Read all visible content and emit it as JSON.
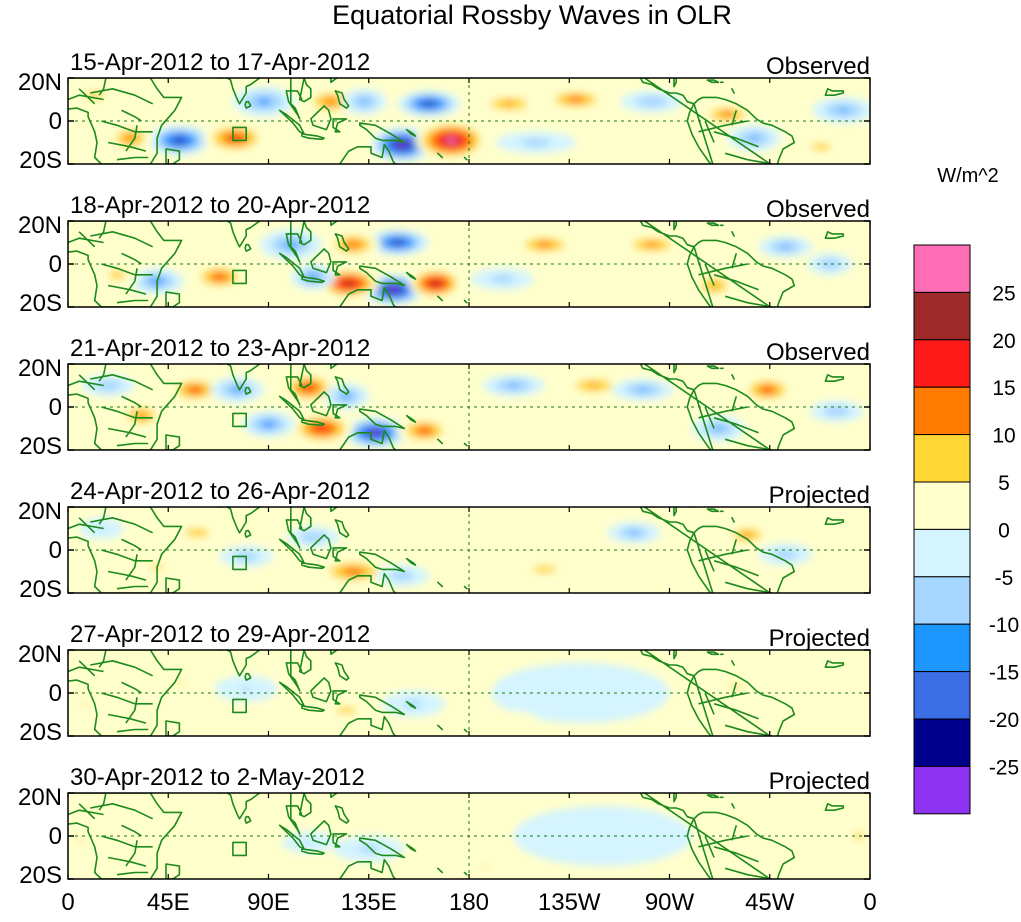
{
  "chart_data": {
    "type": "heatmap",
    "title": "Equatorial Rossby Waves in OLR",
    "units_label": "W/m^2",
    "x_tick_labels": [
      "0",
      "45E",
      "90E",
      "135E",
      "180",
      "135W",
      "90W",
      "45W",
      "0"
    ],
    "x_tick_lons": [
      0,
      45,
      90,
      135,
      180,
      225,
      270,
      315,
      360
    ],
    "y_tick_labels": [
      "20N",
      "0",
      "20S"
    ],
    "y_tick_lats": [
      20,
      0,
      -20
    ],
    "lon_range": [
      0,
      360
    ],
    "lat_range": [
      -20,
      20
    ],
    "colorbar": {
      "levels": [
        -25,
        -20,
        -15,
        -10,
        -5,
        0,
        5,
        10,
        15,
        20,
        25
      ],
      "level_labels": [
        "25",
        "20",
        "15",
        "10",
        "5",
        "0",
        "-5",
        "-10",
        "-15",
        "-20",
        "-25"
      ],
      "colors": [
        "#ff6eb4",
        "#9e2a2a",
        "#ff1a1a",
        "#ff7a00",
        "#ffd633",
        "#ffffcc",
        "#d4f4ff",
        "#a6d6ff",
        "#1e96ff",
        "#3c6ee6",
        "#00008c",
        "#8c32f0"
      ]
    },
    "panels": [
      {
        "date_label": "15-Apr-2012 to 17-Apr-2012",
        "status": "Observed",
        "blobs": [
          {
            "lon": 150,
            "lat": -11,
            "v": -28,
            "rx": 14,
            "ry": 8
          },
          {
            "lon": 172,
            "lat": -9,
            "v": 26,
            "rx": 16,
            "ry": 9
          },
          {
            "lon": 162,
            "lat": 8,
            "v": -22,
            "rx": 14,
            "ry": 6
          },
          {
            "lon": 50,
            "lat": -9,
            "v": -22,
            "rx": 14,
            "ry": 7
          },
          {
            "lon": 75,
            "lat": -8,
            "v": 18,
            "rx": 14,
            "ry": 7
          },
          {
            "lon": 28,
            "lat": -8,
            "v": 14,
            "rx": 10,
            "ry": 6
          },
          {
            "lon": 88,
            "lat": 9,
            "v": -13,
            "rx": 14,
            "ry": 7
          },
          {
            "lon": 118,
            "lat": 9,
            "v": 14,
            "rx": 12,
            "ry": 6
          },
          {
            "lon": 133,
            "lat": 9,
            "v": -12,
            "rx": 10,
            "ry": 6
          },
          {
            "lon": 198,
            "lat": 8,
            "v": 12,
            "rx": 14,
            "ry": 5
          },
          {
            "lon": 228,
            "lat": 10,
            "v": 15,
            "rx": 14,
            "ry": 5
          },
          {
            "lon": 262,
            "lat": 9,
            "v": -10,
            "rx": 14,
            "ry": 5
          },
          {
            "lon": 296,
            "lat": 3,
            "v": 14,
            "rx": 12,
            "ry": 5
          },
          {
            "lon": 308,
            "lat": -8,
            "v": -12,
            "rx": 12,
            "ry": 6
          },
          {
            "lon": 348,
            "lat": 5,
            "v": -12,
            "rx": 14,
            "ry": 6
          },
          {
            "lon": 338,
            "lat": -12,
            "v": 8,
            "rx": 12,
            "ry": 5
          },
          {
            "lon": 12,
            "lat": 12,
            "v": 8,
            "rx": 12,
            "ry": 5
          },
          {
            "lon": 210,
            "lat": -10,
            "v": -8,
            "rx": 18,
            "ry": 5
          }
        ]
      },
      {
        "date_label": "18-Apr-2012 to 20-Apr-2012",
        "status": "Observed",
        "blobs": [
          {
            "lon": 146,
            "lat": -12,
            "v": -28,
            "rx": 14,
            "ry": 7
          },
          {
            "lon": 126,
            "lat": -9,
            "v": 24,
            "rx": 14,
            "ry": 7
          },
          {
            "lon": 165,
            "lat": -9,
            "v": 24,
            "rx": 12,
            "ry": 7
          },
          {
            "lon": 148,
            "lat": 10,
            "v": -22,
            "rx": 14,
            "ry": 6
          },
          {
            "lon": 68,
            "lat": -6,
            "v": 16,
            "rx": 12,
            "ry": 6
          },
          {
            "lon": 40,
            "lat": -8,
            "v": -14,
            "rx": 12,
            "ry": 6
          },
          {
            "lon": 100,
            "lat": 9,
            "v": -13,
            "rx": 14,
            "ry": 7
          },
          {
            "lon": 110,
            "lat": -6,
            "v": -14,
            "rx": 10,
            "ry": 6
          },
          {
            "lon": 128,
            "lat": 9,
            "v": 15,
            "rx": 12,
            "ry": 6
          },
          {
            "lon": 214,
            "lat": 9,
            "v": 14,
            "rx": 14,
            "ry": 5
          },
          {
            "lon": 262,
            "lat": 9,
            "v": 13,
            "rx": 14,
            "ry": 5
          },
          {
            "lon": 290,
            "lat": -10,
            "v": 12,
            "rx": 10,
            "ry": 6
          },
          {
            "lon": 322,
            "lat": 8,
            "v": -12,
            "rx": 12,
            "ry": 5
          },
          {
            "lon": 342,
            "lat": 0,
            "v": -10,
            "rx": 10,
            "ry": 5
          },
          {
            "lon": 22,
            "lat": -5,
            "v": 8,
            "rx": 10,
            "ry": 6
          },
          {
            "lon": 195,
            "lat": -7,
            "v": -8,
            "rx": 14,
            "ry": 5
          }
        ]
      },
      {
        "date_label": "21-Apr-2012 to 23-Apr-2012",
        "status": "Observed",
        "blobs": [
          {
            "lon": 138,
            "lat": -12,
            "v": -26,
            "rx": 14,
            "ry": 7
          },
          {
            "lon": 114,
            "lat": -10,
            "v": 20,
            "rx": 14,
            "ry": 7
          },
          {
            "lon": 160,
            "lat": -11,
            "v": 16,
            "rx": 12,
            "ry": 6
          },
          {
            "lon": 108,
            "lat": 9,
            "v": 18,
            "rx": 12,
            "ry": 7
          },
          {
            "lon": 125,
            "lat": 5,
            "v": -13,
            "rx": 10,
            "ry": 6
          },
          {
            "lon": 57,
            "lat": 8,
            "v": 16,
            "rx": 12,
            "ry": 6
          },
          {
            "lon": 76,
            "lat": 8,
            "v": -13,
            "rx": 12,
            "ry": 6
          },
          {
            "lon": 90,
            "lat": -8,
            "v": -14,
            "rx": 12,
            "ry": 6
          },
          {
            "lon": 33,
            "lat": -4,
            "v": 13,
            "rx": 10,
            "ry": 6
          },
          {
            "lon": 18,
            "lat": 10,
            "v": -10,
            "rx": 12,
            "ry": 5
          },
          {
            "lon": 200,
            "lat": 10,
            "v": -12,
            "rx": 14,
            "ry": 5
          },
          {
            "lon": 236,
            "lat": 10,
            "v": 12,
            "rx": 14,
            "ry": 5
          },
          {
            "lon": 258,
            "lat": 8,
            "v": -12,
            "rx": 14,
            "ry": 5
          },
          {
            "lon": 314,
            "lat": 8,
            "v": 16,
            "rx": 12,
            "ry": 6
          },
          {
            "lon": 292,
            "lat": -10,
            "v": -12,
            "rx": 12,
            "ry": 6
          },
          {
            "lon": 345,
            "lat": -2,
            "v": -10,
            "rx": 12,
            "ry": 5
          }
        ]
      },
      {
        "date_label": "24-Apr-2012 to 26-Apr-2012",
        "status": "Projected",
        "blobs": [
          {
            "lon": 128,
            "lat": -10,
            "v": 15,
            "rx": 16,
            "ry": 6
          },
          {
            "lon": 110,
            "lat": 6,
            "v": -10,
            "rx": 12,
            "ry": 5
          },
          {
            "lon": 150,
            "lat": -12,
            "v": -9,
            "rx": 12,
            "ry": 5
          },
          {
            "lon": 58,
            "lat": 8,
            "v": 9,
            "rx": 12,
            "ry": 5
          },
          {
            "lon": 80,
            "lat": -3,
            "v": -9,
            "rx": 12,
            "ry": 5
          },
          {
            "lon": 40,
            "lat": -8,
            "v": 7,
            "rx": 10,
            "ry": 5
          },
          {
            "lon": 254,
            "lat": 8,
            "v": -11,
            "rx": 12,
            "ry": 5
          },
          {
            "lon": 305,
            "lat": 7,
            "v": 13,
            "rx": 10,
            "ry": 5
          },
          {
            "lon": 322,
            "lat": -2,
            "v": -9,
            "rx": 12,
            "ry": 5
          },
          {
            "lon": 214,
            "lat": -9,
            "v": 8,
            "rx": 14,
            "ry": 5
          },
          {
            "lon": 15,
            "lat": 10,
            "v": -6,
            "rx": 10,
            "ry": 5
          }
        ]
      },
      {
        "date_label": "27-Apr-2012 to 29-Apr-2012",
        "status": "Projected",
        "blobs": [
          {
            "lon": 125,
            "lat": -8,
            "v": 7,
            "rx": 16,
            "ry": 6
          },
          {
            "lon": 155,
            "lat": -5,
            "v": -7,
            "rx": 14,
            "ry": 6
          },
          {
            "lon": 80,
            "lat": 2,
            "v": -6,
            "rx": 14,
            "ry": 6
          },
          {
            "lon": 50,
            "lat": 5,
            "v": 6,
            "rx": 12,
            "ry": 5
          },
          {
            "lon": 8,
            "lat": -5,
            "v": 6,
            "rx": 8,
            "ry": 5
          },
          {
            "lon": 300,
            "lat": 3,
            "v": 7,
            "rx": 10,
            "ry": 4
          },
          {
            "lon": 230,
            "lat": 0,
            "v": -4,
            "rx": 40,
            "ry": 14
          },
          {
            "lon": 195,
            "lat": -12,
            "v": 3,
            "rx": 16,
            "ry": 4
          }
        ]
      },
      {
        "date_label": "30-Apr-2012 to 2-May-2012",
        "status": "Projected",
        "blobs": [
          {
            "lon": 135,
            "lat": -6,
            "v": -7,
            "rx": 16,
            "ry": 6
          },
          {
            "lon": 108,
            "lat": -3,
            "v": -6,
            "rx": 12,
            "ry": 5
          },
          {
            "lon": 6,
            "lat": -2,
            "v": 6,
            "rx": 8,
            "ry": 6
          },
          {
            "lon": 188,
            "lat": -14,
            "v": 6,
            "rx": 8,
            "ry": 4
          },
          {
            "lon": 60,
            "lat": -8,
            "v": 3,
            "rx": 14,
            "ry": 5
          },
          {
            "lon": 240,
            "lat": 0,
            "v": -4,
            "rx": 40,
            "ry": 14
          },
          {
            "lon": 355,
            "lat": 0,
            "v": 7,
            "rx": 6,
            "ry": 8
          }
        ]
      }
    ]
  }
}
